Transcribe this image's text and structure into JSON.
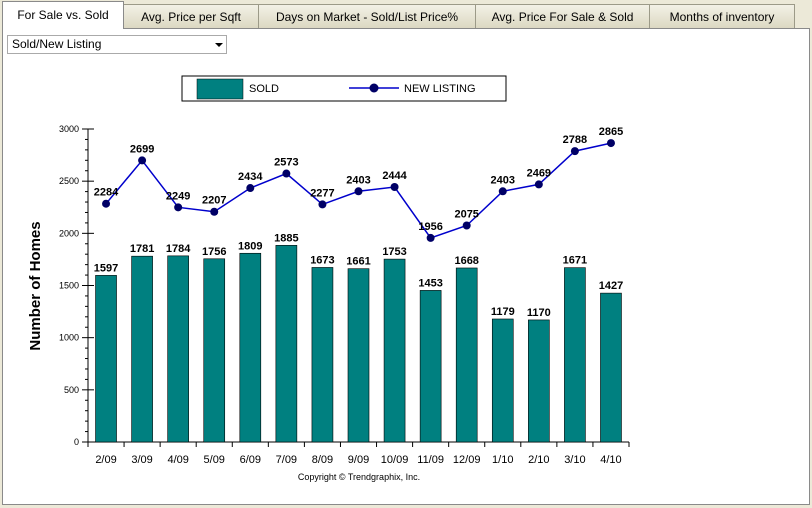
{
  "tabs": [
    {
      "label": "For Sale vs. Sold",
      "active": true
    },
    {
      "label": "Avg. Price per Sqft",
      "active": false
    },
    {
      "label": "Days on Market - Sold/List Price%",
      "active": false
    },
    {
      "label": "Avg. Price For Sale & Sold",
      "active": false
    },
    {
      "label": "Months of inventory",
      "active": false
    }
  ],
  "selector": {
    "value": "Sold/New Listing",
    "icon": "chevron-down-icon"
  },
  "colors": {
    "bar": "#008080",
    "line": "#0000cc",
    "marker": "#000066"
  },
  "chart_data": {
    "type": "bar",
    "categories": [
      "2/09",
      "3/09",
      "4/09",
      "5/09",
      "6/09",
      "7/09",
      "8/09",
      "9/09",
      "10/09",
      "11/09",
      "12/09",
      "1/10",
      "2/10",
      "3/10",
      "4/10"
    ],
    "series": [
      {
        "name": "SOLD",
        "type": "bar",
        "values": [
          1597,
          1781,
          1784,
          1756,
          1809,
          1885,
          1673,
          1661,
          1753,
          1453,
          1668,
          1179,
          1170,
          1671,
          1427
        ]
      },
      {
        "name": "NEW LISTING",
        "type": "line",
        "values": [
          2284,
          2699,
          2249,
          2207,
          2434,
          2573,
          2277,
          2403,
          2444,
          1956,
          2075,
          2403,
          2469,
          2788,
          2865
        ]
      }
    ],
    "ylabel": "Number of Homes",
    "ylim": [
      0,
      3000
    ],
    "yticks": [
      0,
      500,
      1000,
      1500,
      2000,
      2500,
      3000
    ],
    "legend_position": "top-center",
    "grid": false,
    "footer": "Copyright © Trendgraphix, Inc."
  }
}
